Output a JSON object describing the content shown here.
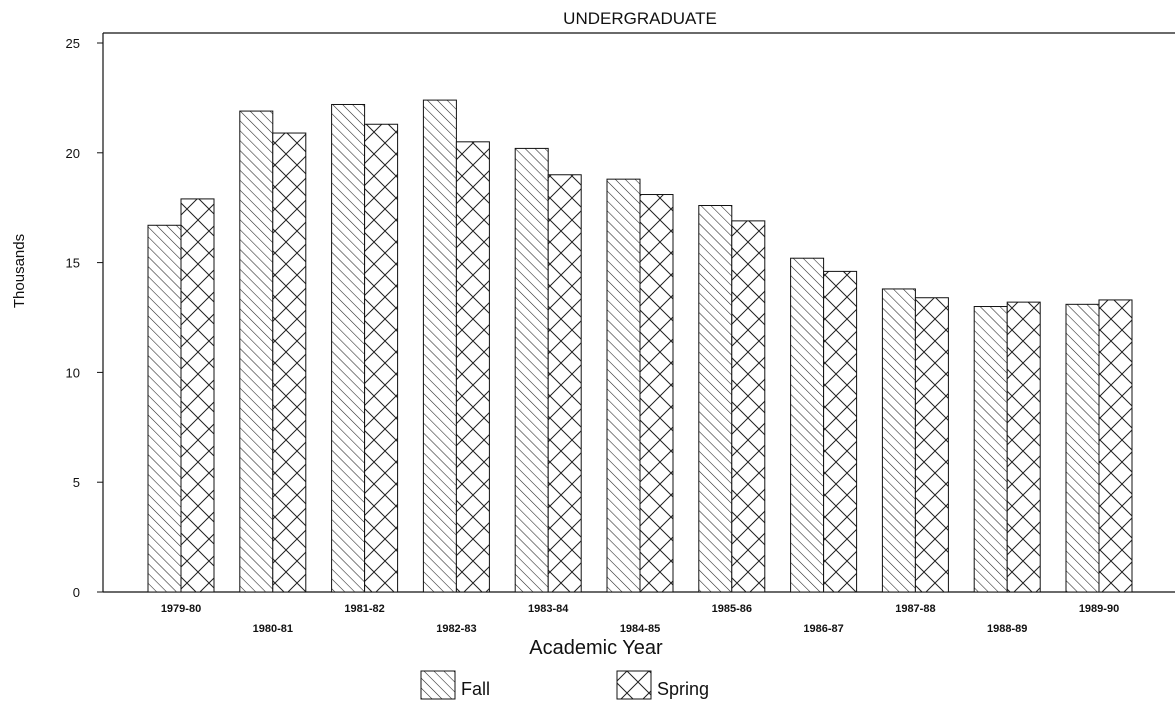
{
  "chart_data": {
    "type": "bar",
    "title": "UNDERGRADUATE",
    "xlabel": "Academic Year",
    "ylabel": "Thousands",
    "ylim": [
      0,
      25
    ],
    "yticks": [
      "0",
      "5",
      "10",
      "15",
      "20",
      "25"
    ],
    "categories": [
      "1979-80",
      "1980-81",
      "1981-82",
      "1982-83",
      "1983-84",
      "1984-85",
      "1985-86",
      "1986-87",
      "1987-88",
      "1988-89",
      "1989-90"
    ],
    "series": [
      {
        "name": "Fall",
        "pattern": "diagonal-hatch",
        "values": [
          16.7,
          21.9,
          22.2,
          22.4,
          20.2,
          18.8,
          17.6,
          15.2,
          13.8,
          13.0,
          13.1
        ]
      },
      {
        "name": "Spring",
        "pattern": "cross-hatch",
        "values": [
          17.9,
          20.9,
          21.3,
          20.5,
          19.0,
          18.1,
          16.9,
          14.6,
          13.4,
          13.2,
          13.3
        ]
      }
    ],
    "grid": false,
    "legend_position": "bottom-center"
  }
}
